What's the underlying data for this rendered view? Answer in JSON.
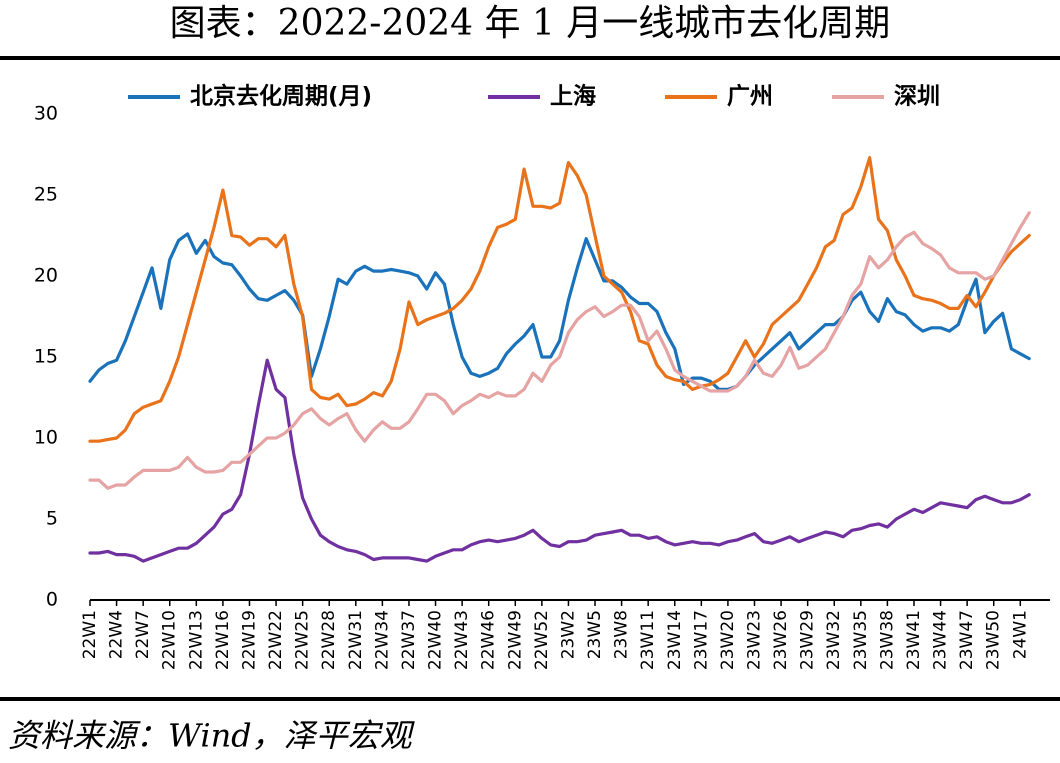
{
  "chart_data": {
    "type": "line",
    "title": "图表：2022-2024 年 1 月一线城市去化周期",
    "source": "资料来源：Wind，泽平宏观",
    "categories": [
      "22W1",
      null,
      null,
      "22W4",
      null,
      null,
      "22W7",
      null,
      null,
      "22W10",
      null,
      null,
      "22W13",
      null,
      null,
      "22W16",
      null,
      null,
      "22W19",
      null,
      null,
      "22W22",
      null,
      null,
      "22W25",
      null,
      null,
      "22W28",
      null,
      null,
      "22W31",
      null,
      null,
      "22W34",
      null,
      null,
      "22W37",
      null,
      null,
      "22W40",
      null,
      null,
      "22W43",
      null,
      null,
      "22W46",
      null,
      null,
      "22W49",
      null,
      null,
      "22W52",
      null,
      null,
      "23W2",
      null,
      null,
      "23W5",
      null,
      null,
      "23W8",
      null,
      null,
      "23W11",
      null,
      null,
      "23W14",
      null,
      null,
      "23W17",
      null,
      null,
      "23W20",
      null,
      null,
      "23W23",
      null,
      null,
      "23W26",
      null,
      null,
      "23W29",
      null,
      null,
      "23W32",
      null,
      null,
      "23W35",
      null,
      null,
      "23W38",
      null,
      null,
      "23W41",
      null,
      null,
      "23W44",
      null,
      null,
      "23W47",
      null,
      null,
      "23W50",
      null,
      null,
      "24W1",
      null
    ],
    "series": [
      {
        "name": "北京去化周期(月)",
        "color": "#1a72bb",
        "values": [
          13.5,
          14.2,
          14.6,
          14.8,
          16.0,
          17.5,
          19.0,
          20.5,
          18.0,
          21.0,
          22.2,
          22.6,
          21.4,
          22.2,
          21.2,
          20.8,
          20.7,
          20.0,
          19.2,
          18.6,
          18.5,
          18.8,
          19.1,
          18.5,
          17.6,
          13.8,
          15.5,
          17.5,
          19.8,
          19.5,
          20.3,
          20.6,
          20.3,
          20.3,
          20.4,
          20.3,
          20.2,
          20.0,
          19.2,
          20.2,
          19.5,
          17.0,
          15.0,
          14.0,
          13.8,
          14.0,
          14.3,
          15.2,
          15.8,
          16.3,
          17.0,
          15.0,
          15.0,
          16.0,
          18.5,
          20.5,
          22.3,
          21.0,
          19.7,
          19.7,
          19.3,
          18.7,
          18.3,
          18.3,
          17.8,
          16.5,
          15.5,
          13.3,
          13.7,
          13.7,
          13.5,
          13.0,
          13.0,
          13.2,
          13.8,
          14.5,
          15.0,
          15.5,
          16.0,
          16.5,
          15.5,
          16.0,
          16.5,
          17.0,
          17.0,
          17.5,
          18.5,
          19.0,
          17.8,
          17.2,
          18.6,
          17.8,
          17.6,
          17.0,
          16.6,
          16.8,
          16.8,
          16.6,
          17.0,
          18.5,
          19.8,
          16.5,
          17.2,
          17.7,
          15.5,
          15.2,
          14.9
        ]
      },
      {
        "name": "上海",
        "color": "#7030a0",
        "values": [
          2.9,
          2.9,
          3.0,
          2.8,
          2.8,
          2.7,
          2.4,
          2.6,
          2.8,
          3.0,
          3.2,
          3.2,
          3.5,
          4.0,
          4.5,
          5.3,
          5.6,
          6.5,
          9.0,
          12.0,
          14.8,
          13.0,
          12.5,
          9.0,
          6.3,
          5.0,
          4.0,
          3.6,
          3.3,
          3.1,
          3.0,
          2.8,
          2.5,
          2.6,
          2.6,
          2.6,
          2.6,
          2.5,
          2.4,
          2.7,
          2.9,
          3.1,
          3.1,
          3.4,
          3.6,
          3.7,
          3.6,
          3.7,
          3.8,
          4.0,
          4.3,
          3.8,
          3.4,
          3.3,
          3.6,
          3.6,
          3.7,
          4.0,
          4.1,
          4.2,
          4.3,
          4.0,
          4.0,
          3.8,
          3.9,
          3.6,
          3.4,
          3.5,
          3.6,
          3.5,
          3.5,
          3.4,
          3.6,
          3.7,
          3.9,
          4.1,
          3.6,
          3.5,
          3.7,
          3.9,
          3.6,
          3.8,
          4.0,
          4.2,
          4.1,
          3.9,
          4.3,
          4.4,
          4.6,
          4.7,
          4.5,
          5.0,
          5.3,
          5.6,
          5.4,
          5.7,
          6.0,
          5.9,
          5.8,
          5.7,
          6.2,
          6.4,
          6.2,
          6.0,
          6.0,
          6.2,
          6.5
        ]
      },
      {
        "name": "广州",
        "color": "#e8731b",
        "values": [
          9.8,
          9.8,
          9.9,
          10.0,
          10.5,
          11.5,
          11.9,
          12.1,
          12.3,
          13.5,
          15.0,
          17.0,
          19.0,
          21.0,
          23.0,
          25.3,
          22.5,
          22.4,
          21.9,
          22.3,
          22.3,
          21.8,
          22.5,
          19.5,
          17.5,
          13.0,
          12.5,
          12.4,
          12.7,
          12.0,
          12.1,
          12.4,
          12.8,
          12.6,
          13.5,
          15.5,
          18.4,
          17.0,
          17.3,
          17.5,
          17.7,
          18.0,
          18.5,
          19.2,
          20.3,
          21.8,
          23.0,
          23.2,
          23.5,
          26.6,
          24.3,
          24.3,
          24.2,
          24.5,
          27.0,
          26.2,
          25.0,
          22.5,
          20.0,
          19.5,
          19.0,
          17.8,
          16.0,
          15.8,
          14.5,
          13.8,
          13.6,
          13.5,
          13.0,
          13.2,
          13.3,
          13.6,
          14.0,
          15.0,
          16.0,
          15.0,
          15.8,
          17.0,
          17.5,
          18.0,
          18.5,
          19.5,
          20.5,
          21.8,
          22.2,
          23.8,
          24.2,
          25.5,
          27.3,
          23.5,
          22.8,
          21.0,
          20.0,
          18.8,
          18.6,
          18.5,
          18.3,
          18.0,
          18.0,
          18.8,
          18.1,
          19.0,
          20.0,
          20.8,
          21.5,
          22.0,
          22.5
        ]
      },
      {
        "name": "深圳",
        "color": "#e6a3a3",
        "values": [
          7.4,
          7.4,
          6.9,
          7.1,
          7.1,
          7.6,
          8.0,
          8.0,
          8.0,
          8.0,
          8.2,
          8.8,
          8.2,
          7.9,
          7.9,
          8.0,
          8.5,
          8.5,
          9.0,
          9.5,
          10.0,
          10.0,
          10.3,
          10.8,
          11.5,
          11.8,
          11.2,
          10.8,
          11.2,
          11.5,
          10.5,
          9.8,
          10.5,
          11.0,
          10.6,
          10.6,
          11.0,
          11.8,
          12.7,
          12.7,
          12.3,
          11.5,
          12.0,
          12.3,
          12.7,
          12.5,
          12.8,
          12.6,
          12.6,
          13.0,
          14.0,
          13.5,
          14.5,
          15.0,
          16.5,
          17.3,
          17.8,
          18.1,
          17.5,
          17.8,
          18.2,
          18.2,
          17.5,
          16.0,
          16.6,
          15.5,
          14.2,
          13.8,
          13.5,
          13.2,
          12.9,
          12.9,
          12.9,
          13.2,
          13.8,
          14.8,
          14.0,
          13.8,
          14.5,
          15.6,
          14.3,
          14.5,
          15.0,
          15.5,
          16.5,
          17.5,
          18.8,
          19.5,
          21.2,
          20.5,
          21.0,
          21.8,
          22.4,
          22.7,
          22.0,
          21.7,
          21.3,
          20.5,
          20.2,
          20.2,
          20.2,
          19.8,
          20.0,
          21.0,
          22.0,
          23.0,
          23.9
        ]
      }
    ],
    "ylim": [
      0,
      30
    ],
    "yticks": [
      0,
      5,
      10,
      15,
      20,
      25,
      30
    ],
    "legend": "top"
  }
}
